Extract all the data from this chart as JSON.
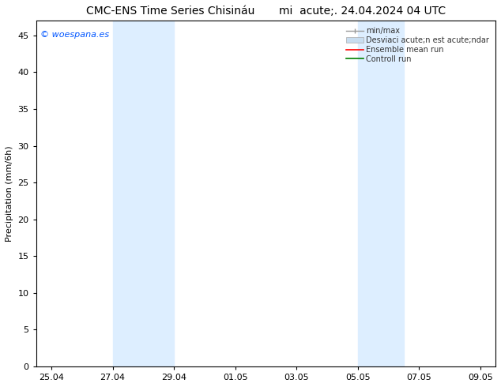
{
  "title": "CMC-ENS Time Series Chisináu       mi  acute;. 24.04.2024 04 UTC",
  "ylabel": "Precipitation (mm/6h)",
  "watermark": "© woespana.es",
  "background_color": "#ffffff",
  "plot_bg_color": "#ffffff",
  "shaded_regions": [
    {
      "xstart": 2.0,
      "xend": 4.0,
      "color": "#ddeeff"
    },
    {
      "xstart": 10.0,
      "xend": 11.5,
      "color": "#ddeeff"
    }
  ],
  "x_ticks_labels": [
    "25.04",
    "27.04",
    "29.04",
    "01.05",
    "03.05",
    "05.05",
    "07.05",
    "09.05"
  ],
  "x_ticks_positions": [
    0,
    2,
    4,
    6,
    8,
    10,
    12,
    14
  ],
  "ylim": [
    0,
    47
  ],
  "yticks": [
    0,
    5,
    10,
    15,
    20,
    25,
    30,
    35,
    40,
    45
  ],
  "legend_labels": [
    "min/max",
    "Desviaci acute;n est acute;ndar",
    "Ensemble mean run",
    "Controll run"
  ],
  "legend_colors": [
    "#999999",
    "#c8ddf0",
    "#ff0000",
    "#008000"
  ],
  "title_fontsize": 10,
  "label_fontsize": 8,
  "tick_fontsize": 8,
  "watermark_fontsize": 8,
  "watermark_color": "#0055ff",
  "spine_color": "#000000",
  "tick_color": "#000000"
}
